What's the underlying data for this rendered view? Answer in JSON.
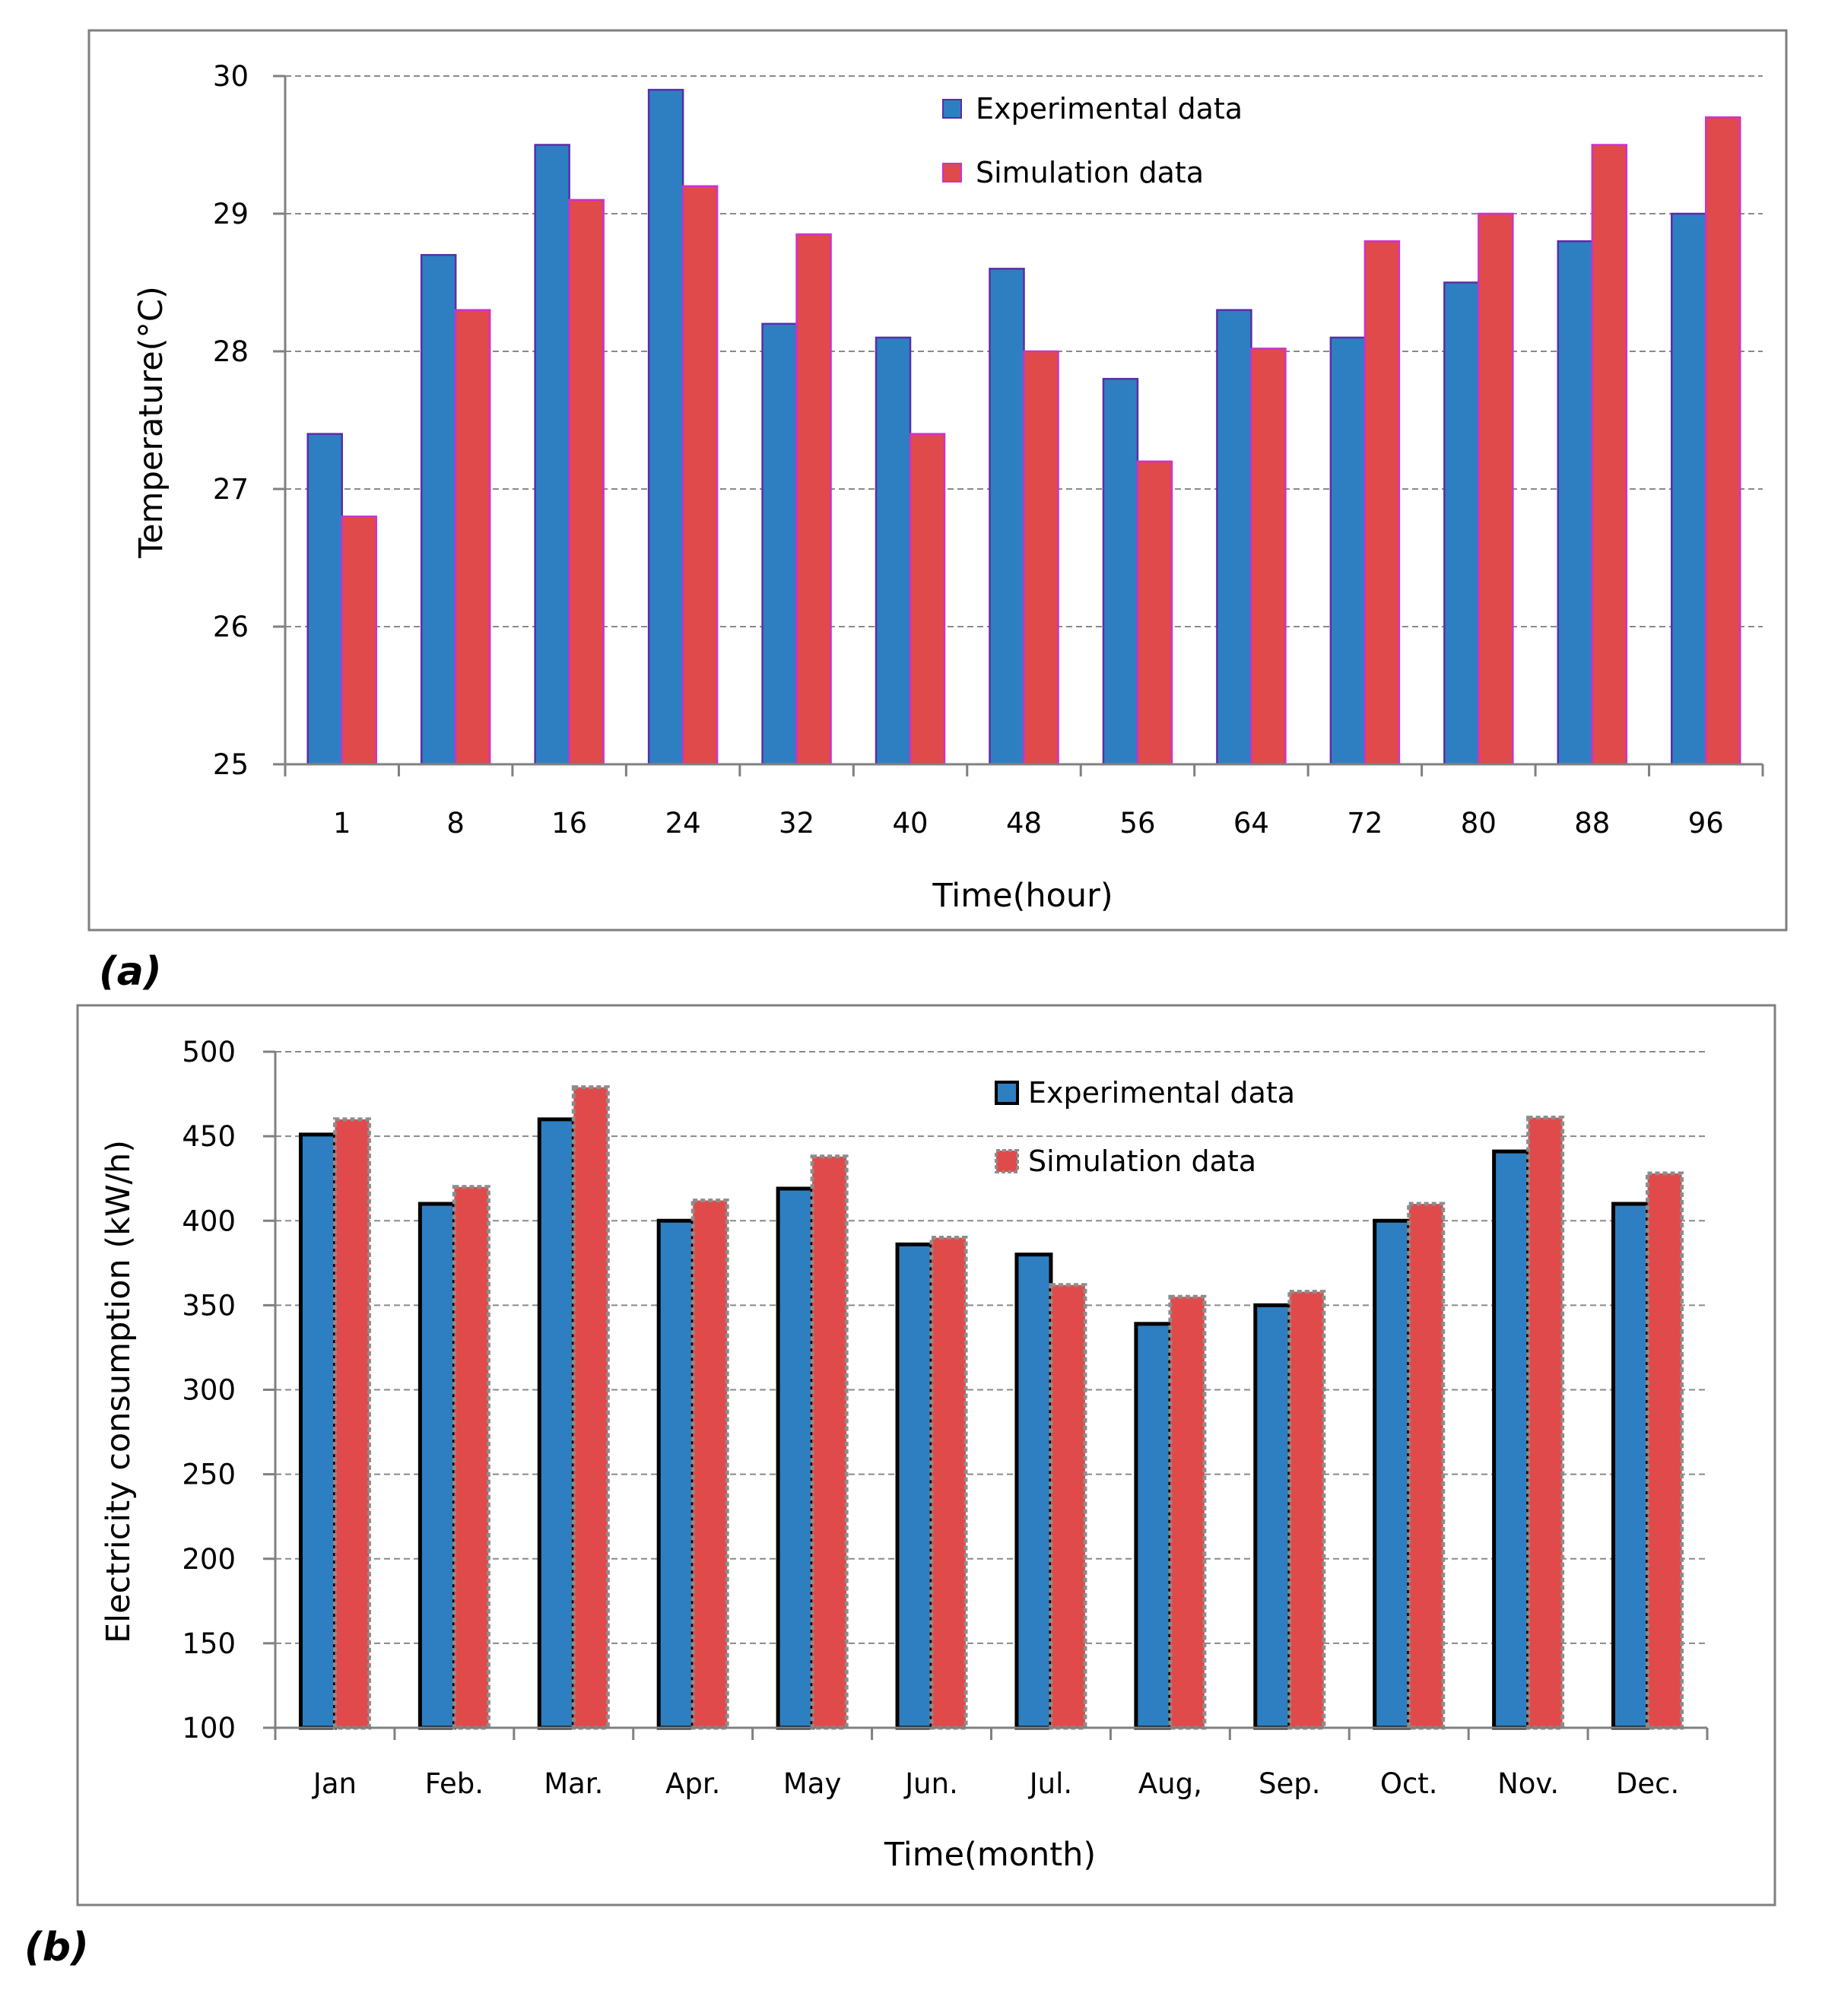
{
  "chart_data": [
    {
      "panel_label": "(a)",
      "type": "bar",
      "xlabel": "Time(hour)",
      "ylabel": "Temperature(°C)",
      "ylim": [
        25,
        30
      ],
      "yticks": [
        25,
        26,
        27,
        28,
        29,
        30
      ],
      "grid": true,
      "legend_position": "top-right",
      "categories": [
        "1",
        "8",
        "16",
        "24",
        "32",
        "40",
        "48",
        "56",
        "64",
        "72",
        "80",
        "88",
        "96"
      ],
      "series": [
        {
          "name": "Experimental data",
          "color": "#2e7fc1",
          "values": [
            27.4,
            28.7,
            29.5,
            29.9,
            28.2,
            28.1,
            28.6,
            27.8,
            28.3,
            28.1,
            28.5,
            28.8,
            29.0
          ]
        },
        {
          "name": "Simulation data",
          "color": "#e04a4a",
          "values": [
            26.8,
            28.3,
            29.1,
            29.2,
            28.85,
            27.4,
            28.0,
            27.2,
            28.02,
            28.8,
            29.0,
            29.5,
            29.7
          ]
        }
      ]
    },
    {
      "panel_label": "(b)",
      "type": "bar",
      "xlabel": "Time(month)",
      "ylabel": "Electricity consumption (kW/h)",
      "ylim": [
        100,
        500
      ],
      "yticks": [
        100,
        150,
        200,
        250,
        300,
        350,
        400,
        450,
        500
      ],
      "grid": true,
      "legend_position": "top-right",
      "categories": [
        "Jan",
        "Feb.",
        "Mar.",
        "Apr.",
        "May",
        "Jun.",
        "Jul.",
        "Aug,",
        "Sep.",
        "Oct.",
        "Nov.",
        "Dec."
      ],
      "series": [
        {
          "name": "Experimental data",
          "color": "#2e7fc1",
          "values": [
            451,
            410,
            460,
            400,
            419,
            386,
            380,
            339,
            350,
            400,
            441,
            410
          ]
        },
        {
          "name": "Simulation data",
          "color": "#e04a4a",
          "values": [
            460,
            420,
            479,
            412,
            438,
            390,
            362,
            355,
            358,
            410,
            461,
            428
          ]
        }
      ]
    }
  ]
}
